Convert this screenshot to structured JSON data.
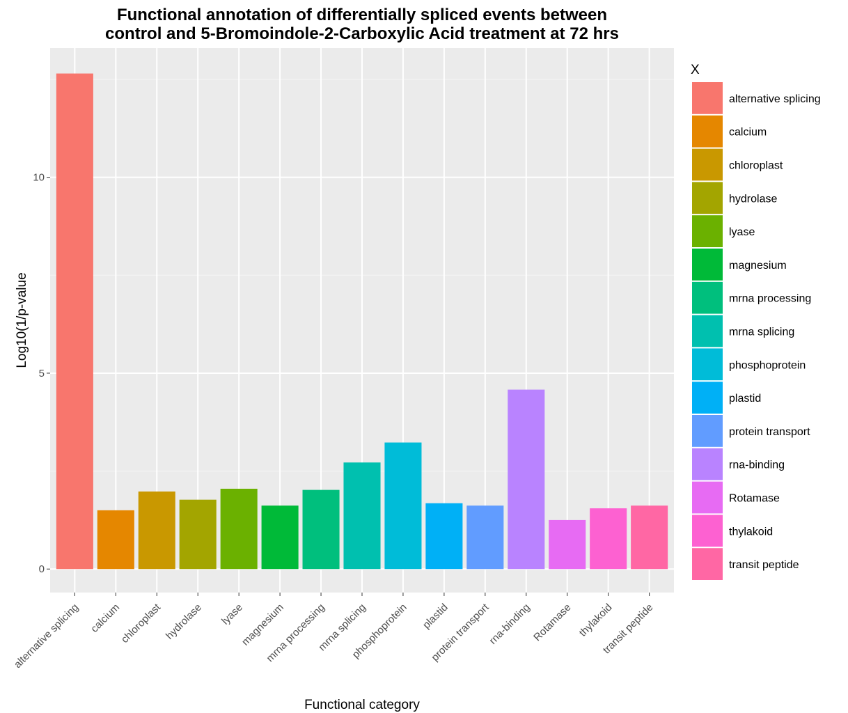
{
  "chart_data": {
    "type": "bar",
    "title": "Functional annotation of differentially spliced events between control and 5-Bromoindole-2-Carboxylic Acid treatment at 72 hrs",
    "title_lines": [
      "Functional annotation of differentially spliced events between",
      "control and 5-Bromoindole-2-Carboxylic Acid treatment at 72 hrs"
    ],
    "xlabel": "Functional category",
    "ylabel": "Log10(1/p-value",
    "ylim": [
      -0.6,
      13.3
    ],
    "yticks": [
      0,
      5,
      10
    ],
    "grid": true,
    "legend_title": "X",
    "legend_position": "right",
    "categories": [
      "alternative splicing",
      "calcium",
      "chloroplast",
      "hydrolase",
      "lyase",
      "magnesium",
      "mrna processing",
      "mrna splicing",
      "phosphoprotein",
      "plastid",
      "protein transport",
      "rna-binding",
      "Rotamase",
      "thylakoid",
      "transit peptide"
    ],
    "values": [
      12.65,
      1.5,
      1.98,
      1.77,
      2.05,
      1.62,
      2.02,
      2.72,
      3.23,
      1.68,
      1.62,
      4.58,
      1.25,
      1.55,
      1.62
    ],
    "colors": [
      "#F8766D",
      "#E58700",
      "#C99800",
      "#A3A500",
      "#6BB100",
      "#00BA38",
      "#00BF7D",
      "#00C0AF",
      "#00BCD8",
      "#00B0F6",
      "#619CFF",
      "#B983FF",
      "#E76BF3",
      "#FD61D1",
      "#FF67A4"
    ]
  }
}
